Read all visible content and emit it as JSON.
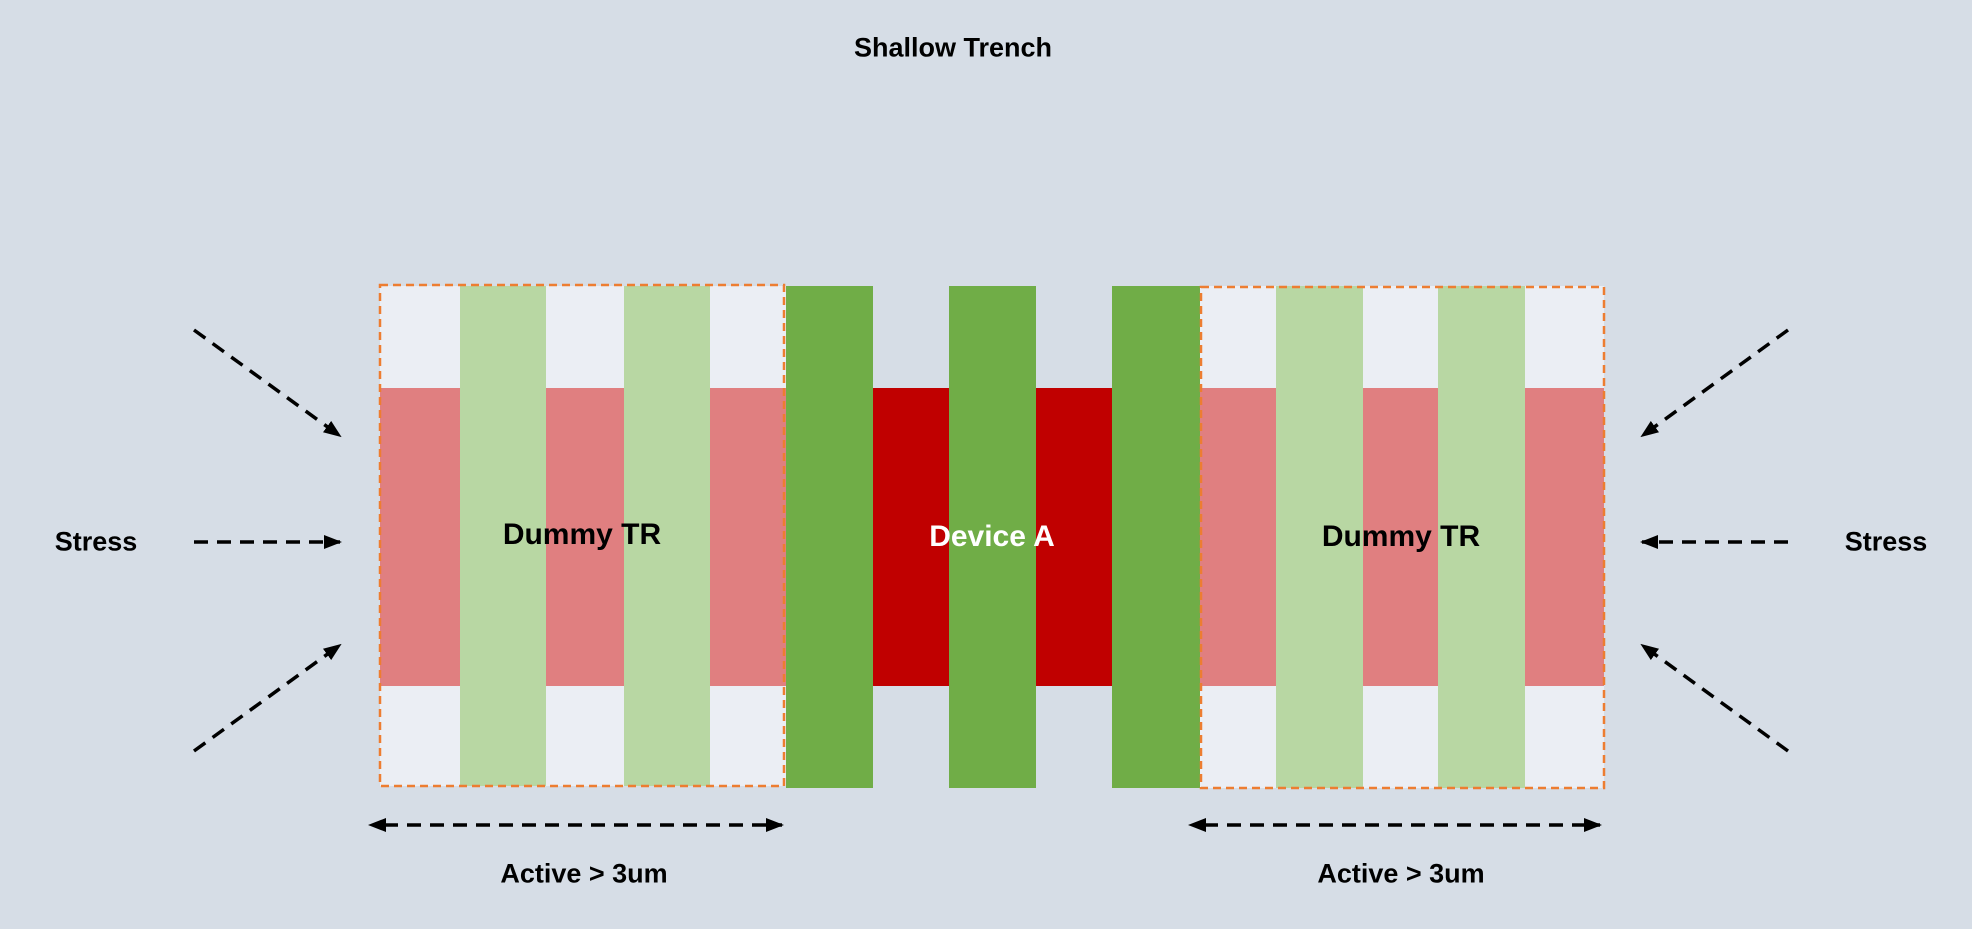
{
  "title": "Shallow Trench",
  "labels": {
    "stress_left": "Stress",
    "stress_right": "Stress",
    "dummy_left": "Dummy TR",
    "dummy_right": "Dummy TR",
    "device": "Device A",
    "active_left": "Active > 3um",
    "active_right": "Active > 3um"
  },
  "colors": {
    "background": "#d6dde6",
    "active_light": "#e07f80",
    "active_device": "#c00000",
    "gate_light": "#b8d7a3",
    "gate_device": "#70ad47",
    "trench_light": "#ebeef4",
    "dummy_outline": "#ed7d31",
    "arrow": "#000000"
  }
}
